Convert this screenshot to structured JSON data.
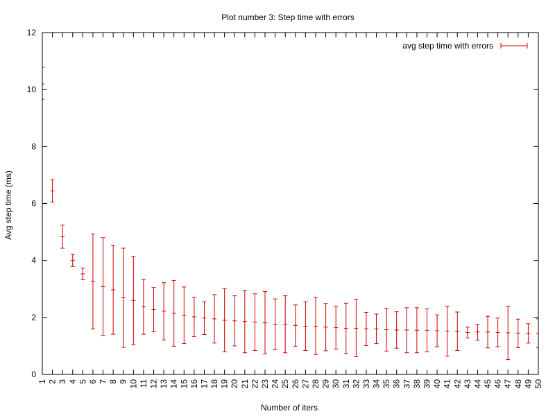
{
  "chart_data": {
    "type": "errorbar",
    "title": "Plot number 3: Step time with errors",
    "xlabel": "Number of iters",
    "ylabel": "Avg step time (ms)",
    "xlim": [
      1,
      50
    ],
    "ylim": [
      0,
      12
    ],
    "yticks": [
      0,
      2,
      4,
      6,
      8,
      10,
      12
    ],
    "grid": false,
    "legend": {
      "position": "top-right"
    },
    "series": [
      {
        "name": "avg step time with errors",
        "color": "#cc0000",
        "x": [
          1,
          2,
          3,
          4,
          5,
          6,
          7,
          8,
          9,
          10,
          11,
          12,
          13,
          14,
          15,
          16,
          17,
          18,
          19,
          20,
          21,
          22,
          23,
          24,
          25,
          26,
          27,
          28,
          29,
          30,
          31,
          32,
          33,
          34,
          35,
          36,
          37,
          38,
          39,
          40,
          41,
          42,
          43,
          44,
          45,
          46,
          47,
          48,
          49,
          50
        ],
        "y": [
          10.2,
          6.44,
          4.83,
          4.0,
          3.53,
          3.27,
          3.08,
          2.97,
          2.69,
          2.6,
          2.37,
          2.28,
          2.22,
          2.15,
          2.08,
          2.02,
          1.98,
          1.95,
          1.9,
          1.88,
          1.86,
          1.84,
          1.81,
          1.76,
          1.76,
          1.72,
          1.69,
          1.69,
          1.66,
          1.64,
          1.62,
          1.62,
          1.6,
          1.6,
          1.57,
          1.56,
          1.56,
          1.55,
          1.55,
          1.53,
          1.52,
          1.51,
          1.47,
          1.49,
          1.49,
          1.47,
          1.46,
          1.45,
          1.44,
          1.44
        ],
        "lo": [
          9.66,
          6.05,
          4.43,
          3.79,
          3.33,
          1.6,
          1.37,
          1.41,
          0.95,
          1.04,
          1.41,
          1.5,
          1.21,
          0.99,
          1.08,
          1.33,
          1.4,
          1.1,
          0.79,
          1.0,
          0.76,
          0.84,
          0.72,
          0.87,
          0.76,
          0.99,
          0.84,
          0.7,
          0.83,
          0.89,
          0.73,
          0.62,
          1.01,
          1.08,
          0.82,
          0.92,
          0.76,
          0.76,
          0.79,
          0.97,
          0.64,
          0.84,
          1.28,
          1.2,
          0.93,
          0.97,
          0.52,
          0.94,
          1.1,
          0.94
        ],
        "hi": [
          10.78,
          6.83,
          5.24,
          4.22,
          3.73,
          4.93,
          4.8,
          4.53,
          4.43,
          4.14,
          3.33,
          3.05,
          3.22,
          3.3,
          3.07,
          2.71,
          2.55,
          2.8,
          3.01,
          2.76,
          2.95,
          2.83,
          2.91,
          2.65,
          2.76,
          2.44,
          2.55,
          2.7,
          2.49,
          2.39,
          2.5,
          2.64,
          2.18,
          2.12,
          2.32,
          2.2,
          2.34,
          2.34,
          2.3,
          2.09,
          2.39,
          2.19,
          1.66,
          1.76,
          2.04,
          1.98,
          2.39,
          1.94,
          1.78,
          1.95
        ]
      }
    ]
  }
}
